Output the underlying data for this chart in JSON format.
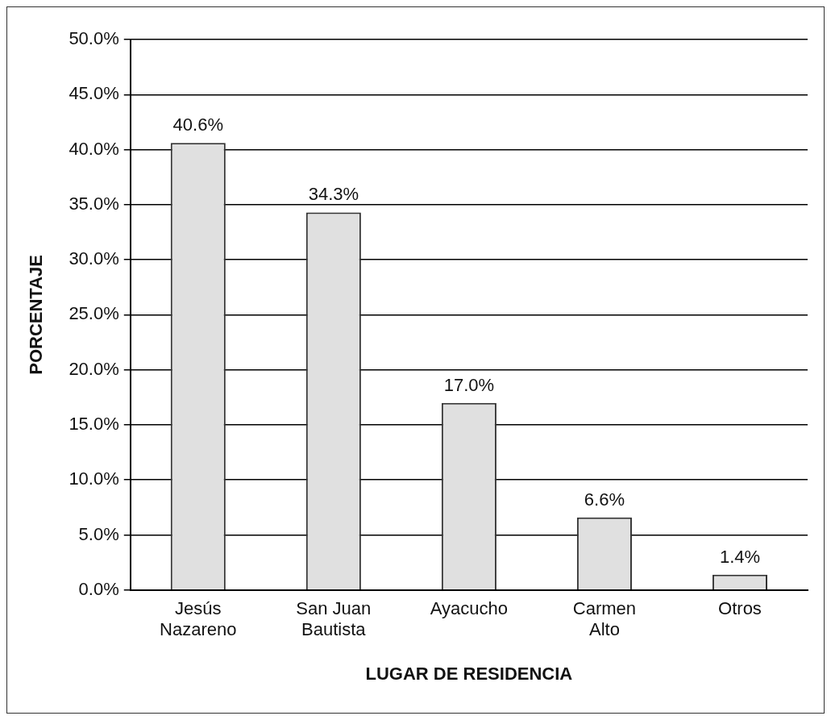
{
  "chart_data": {
    "type": "bar",
    "xlabel": "LUGAR DE RESIDENCIA",
    "ylabel": "PORCENTAJE",
    "categories": [
      "Jesús\nNazareno",
      "San Juan\nBautista",
      "Ayacucho",
      "Carmen\nAlto",
      "Otros"
    ],
    "values": [
      40.6,
      34.3,
      17.0,
      6.6,
      1.4
    ],
    "value_labels": [
      "40.6%",
      "34.3%",
      "17.0%",
      "6.6%",
      "1.4%"
    ],
    "color": "#e0e0e0",
    "ylim": [
      0,
      50
    ],
    "yticks": [
      {
        "value": 0,
        "label": "0.0%"
      },
      {
        "value": 5,
        "label": "5.0%"
      },
      {
        "value": 10,
        "label": "10.0%"
      },
      {
        "value": 15,
        "label": "15.0%"
      },
      {
        "value": 20,
        "label": "20.0%"
      },
      {
        "value": 25,
        "label": "25.0%"
      },
      {
        "value": 30,
        "label": "30.0%"
      },
      {
        "value": 35,
        "label": "35.0%"
      },
      {
        "value": 40,
        "label": "40.0%"
      },
      {
        "value": 45,
        "label": "45.0%"
      },
      {
        "value": 50,
        "label": "50.0%"
      }
    ],
    "grid": "y",
    "legend": false
  }
}
